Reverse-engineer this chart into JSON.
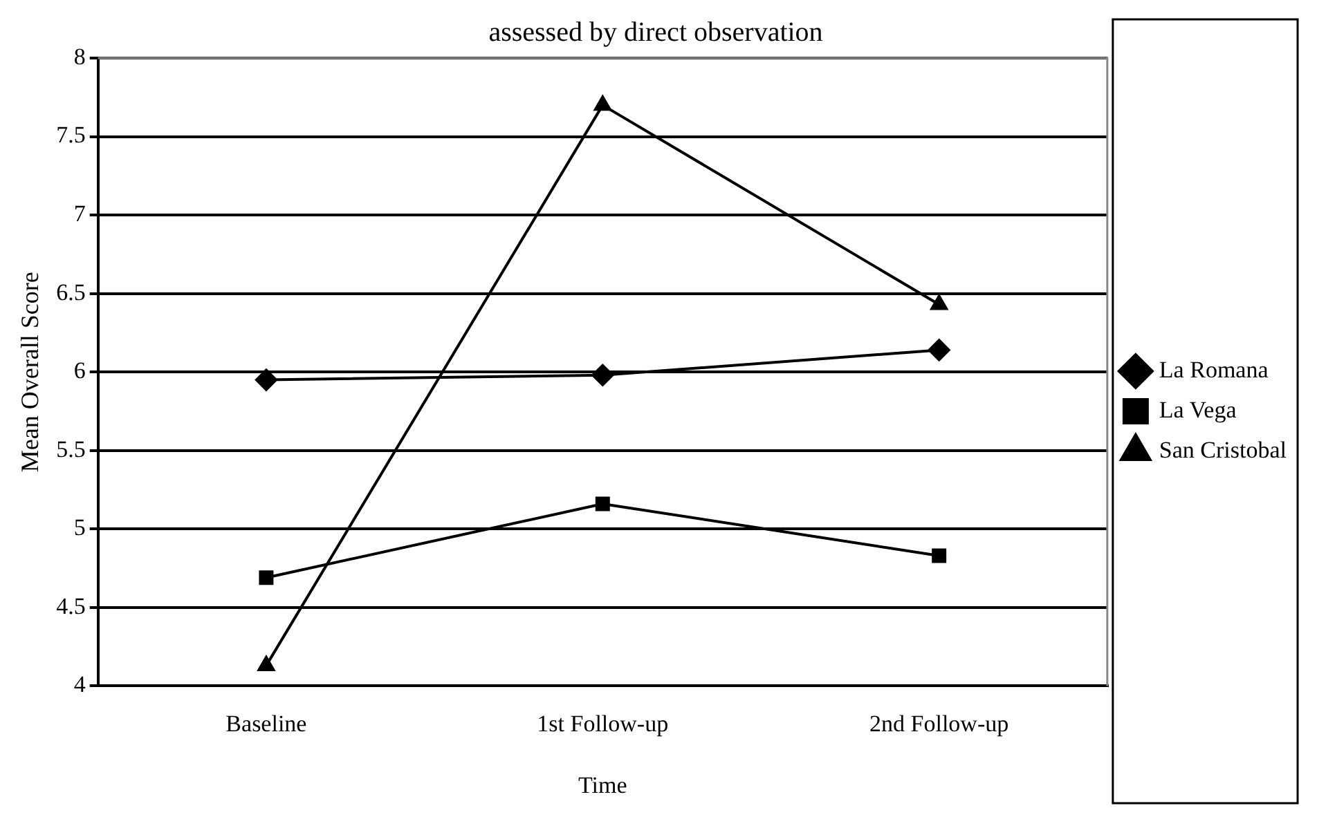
{
  "chart_data": {
    "type": "line",
    "title": "assessed by direct observation",
    "xlabel": "Time",
    "ylabel": "Mean Overall Score",
    "categories": [
      "Baseline",
      "1st Follow-up",
      "2nd Follow-up"
    ],
    "series": [
      {
        "name": "La Romana",
        "color": "#000000",
        "marker": "diamond",
        "values": [
          5.95,
          5.98,
          6.14
        ]
      },
      {
        "name": "La Vega",
        "color": "#000000",
        "marker": "square",
        "values": [
          4.69,
          5.16,
          4.83
        ]
      },
      {
        "name": "San Cristobal",
        "color": "#000000",
        "marker": "triangle",
        "values": [
          4.13,
          7.7,
          6.43
        ]
      }
    ],
    "ylim": [
      4,
      8
    ],
    "yticks": [
      4,
      4.5,
      5,
      5.5,
      6,
      6.5,
      7,
      7.5,
      8
    ],
    "grid": "y",
    "legend": "right"
  }
}
